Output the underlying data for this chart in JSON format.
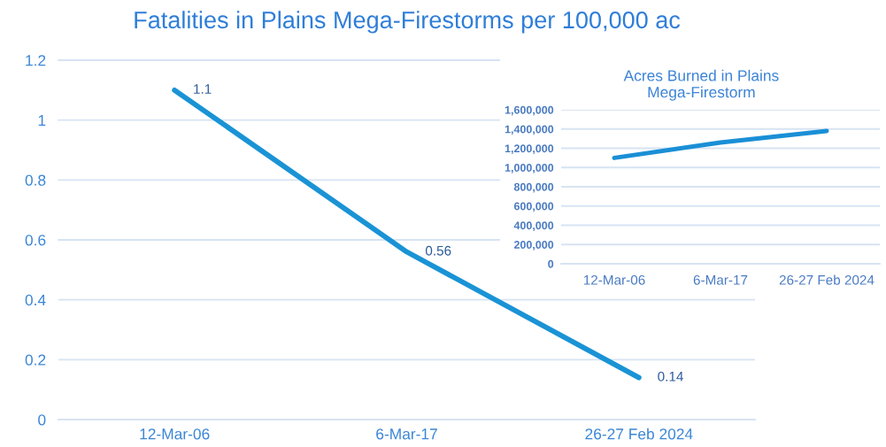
{
  "chart_data": [
    {
      "type": "line",
      "title": "Fatalities in Plains Mega-Firestorms per 100,000 ac",
      "categories": [
        "12-Mar-06",
        "6-Mar-17",
        "26-27 Feb 2024"
      ],
      "series": [
        {
          "color": "#1a93d5",
          "values": [
            1.1,
            0.56,
            0.14
          ]
        }
      ],
      "ylim": [
        0,
        1.2
      ],
      "yticks": [
        0,
        0.2,
        0.4,
        0.6,
        0.8,
        1,
        1.2
      ],
      "grid": "y",
      "data_labels": true
    },
    {
      "type": "line",
      "title": "Acres Burned in Plains\nMega-Firestorm",
      "categories": [
        "12-Mar-06",
        "6-Mar-17",
        "26-27 Feb 2024"
      ],
      "series": [
        {
          "color": "#1a8fd6",
          "values": [
            1100000,
            1260000,
            1380000
          ]
        }
      ],
      "ylim": [
        0,
        1600000
      ],
      "yticks": [
        0,
        {
          "value": 200000,
          "label": "200,000"
        },
        {
          "value": 400000,
          "label": "400,000"
        },
        {
          "value": 600000,
          "label": "600,000"
        },
        {
          "value": 800000,
          "label": "800,000"
        },
        {
          "value": 1000000,
          "label": "1,000,000"
        },
        {
          "value": 1200000,
          "label": "1,200,000"
        },
        {
          "value": 1400000,
          "label": "1,400,000"
        },
        {
          "value": 1600000,
          "label": "1,600,000"
        }
      ],
      "grid": "y"
    }
  ]
}
